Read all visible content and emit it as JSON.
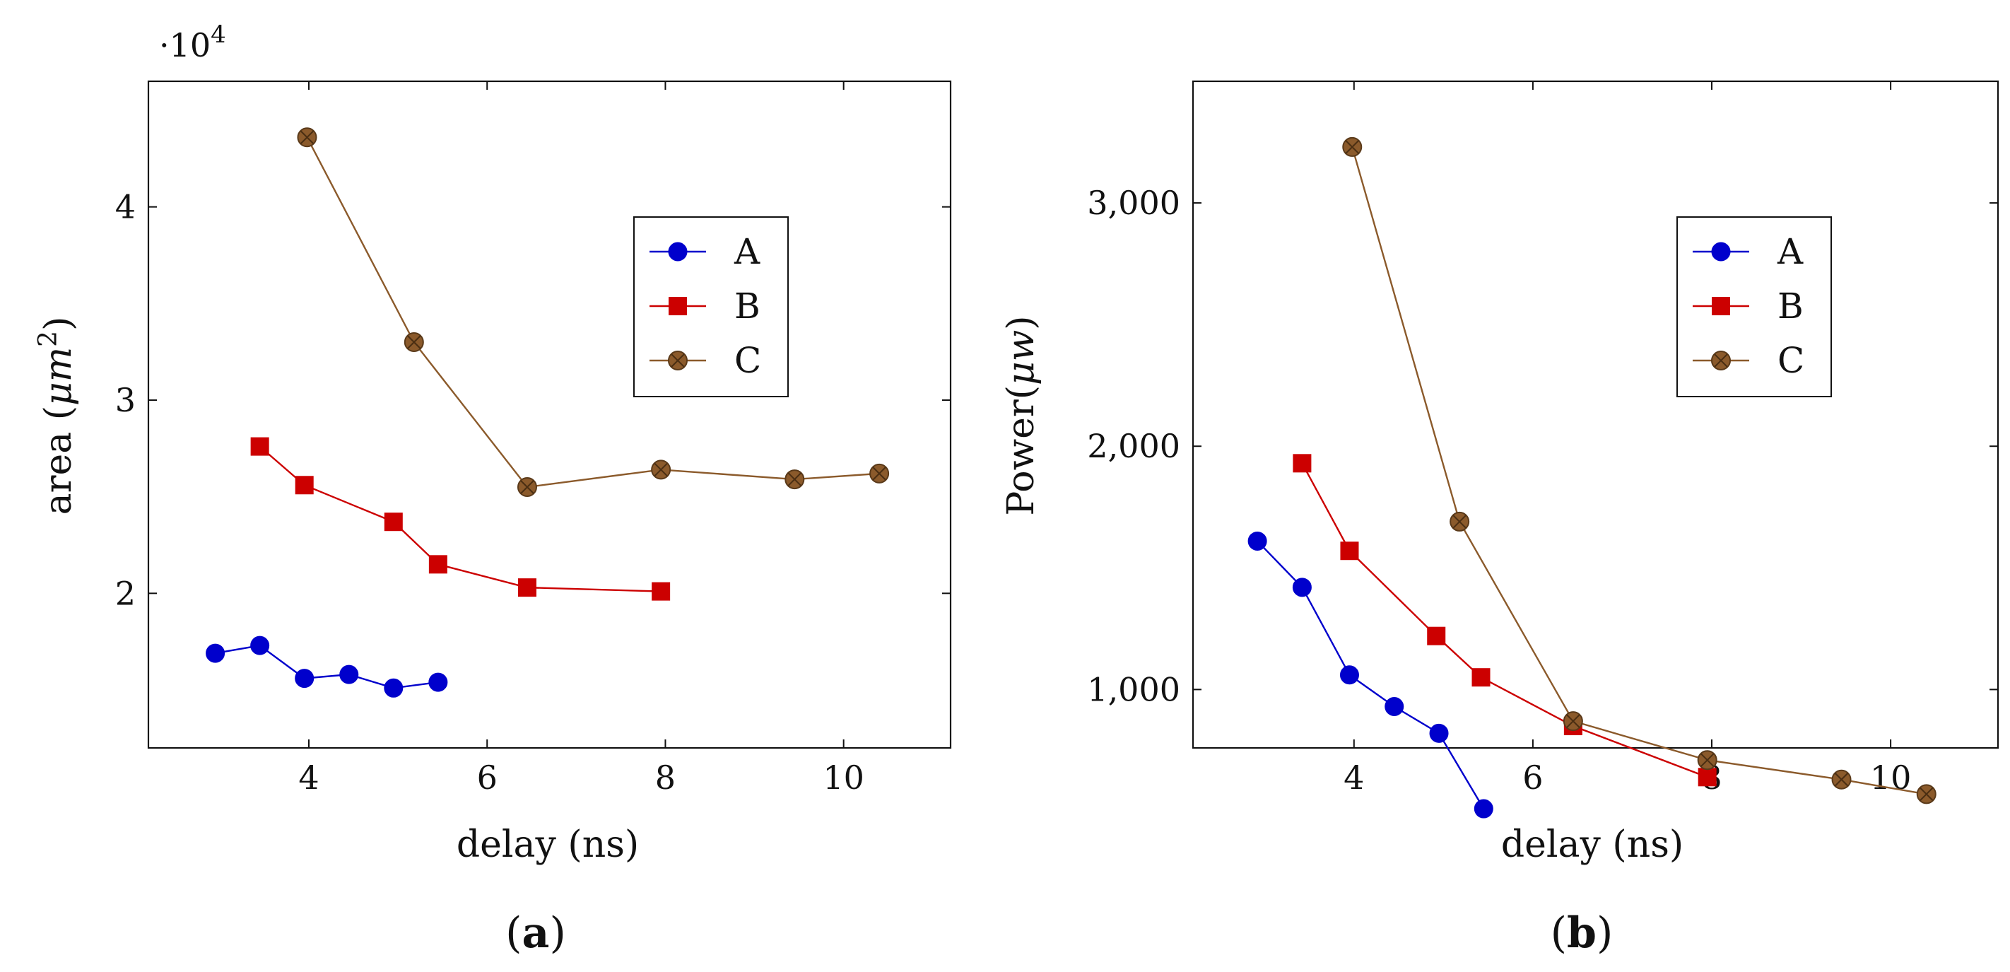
{
  "chart_data": [
    {
      "type": "line",
      "panel": "(a)",
      "caption_letter": "a",
      "xlabel": "delay (ns)",
      "ylabel_text": "area (",
      "ylabel_unit": "μm",
      "ylabel_exp": "2",
      "ylabel_close": ")",
      "y_multiplier_base": "·10",
      "y_multiplier_exp": "4",
      "xlim": [
        2.2,
        11.2
      ],
      "ylim": [
        1.2,
        4.65
      ],
      "xticks": [
        4,
        6,
        8,
        10
      ],
      "xtick_labels": [
        "4",
        "6",
        "8",
        "10"
      ],
      "yticks": [
        2,
        3,
        4
      ],
      "ytick_labels": [
        "2",
        "3",
        "4"
      ],
      "legend_position": "upper-right",
      "series": [
        {
          "name": "A",
          "color": "#0000cc",
          "marker": "circle",
          "x": [
            2.95,
            3.45,
            3.95,
            4.45,
            4.95,
            5.45
          ],
          "y": [
            1.69,
            1.73,
            1.56,
            1.58,
            1.51,
            1.54
          ]
        },
        {
          "name": "B",
          "color": "#cc0000",
          "marker": "square",
          "x": [
            3.45,
            3.95,
            4.95,
            5.45,
            6.45,
            7.95
          ],
          "y": [
            2.76,
            2.56,
            2.37,
            2.15,
            2.03,
            2.01
          ]
        },
        {
          "name": "C",
          "color": "#8b5a2b",
          "marker": "otimes",
          "x": [
            3.98,
            5.18,
            6.45,
            7.95,
            9.45,
            10.4
          ],
          "y": [
            4.36,
            3.3,
            2.55,
            2.64,
            2.59,
            2.62
          ]
        }
      ]
    },
    {
      "type": "line",
      "panel": "(b)",
      "caption_letter": "b",
      "xlabel": "delay (ns)",
      "ylabel_text": "Power(",
      "ylabel_unit": "μw",
      "ylabel_exp": "",
      "ylabel_close": ")",
      "y_multiplier_base": "",
      "y_multiplier_exp": "",
      "xlim": [
        2.2,
        11.2
      ],
      "ylim": [
        760,
        3500
      ],
      "xticks": [
        4,
        6,
        8,
        10
      ],
      "xtick_labels": [
        "4",
        "6",
        "8",
        "10"
      ],
      "yticks": [
        1000,
        2000,
        3000
      ],
      "ytick_labels": [
        "1,000",
        "2,000",
        "3,000"
      ],
      "legend_position": "upper-right",
      "series": [
        {
          "name": "A",
          "color": "#0000cc",
          "marker": "circle",
          "x": [
            2.92,
            3.42,
            3.95,
            4.45,
            4.95,
            5.45
          ],
          "y": [
            1610,
            1420,
            1060,
            930,
            820,
            510
          ]
        },
        {
          "name": "B",
          "color": "#cc0000",
          "marker": "square",
          "x": [
            3.42,
            3.95,
            4.92,
            5.42,
            6.45,
            7.95
          ],
          "y": [
            1930,
            1570,
            1220,
            1050,
            850,
            640
          ]
        },
        {
          "name": "C",
          "color": "#8b5a2b",
          "marker": "otimes",
          "x": [
            3.98,
            5.18,
            6.45,
            7.95,
            9.45,
            10.4
          ],
          "y": [
            3230,
            1690,
            870,
            710,
            630,
            570
          ]
        }
      ]
    }
  ]
}
